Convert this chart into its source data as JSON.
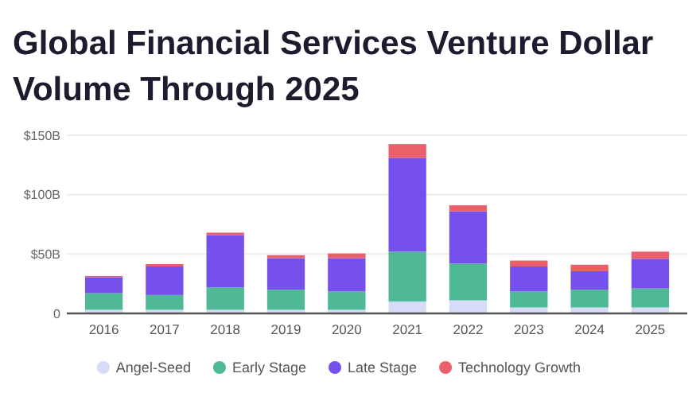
{
  "chart_data": {
    "type": "bar",
    "title": "Global Financial Services Venture Dollar Volume Through 2025",
    "categories": [
      "2016",
      "2017",
      "2018",
      "2019",
      "2020",
      "2021",
      "2022",
      "2023",
      "2024",
      "2025"
    ],
    "stacked": true,
    "series": [
      {
        "name": "Angel-Seed",
        "color": "#d6dcf7",
        "values": [
          3,
          3,
          3,
          3,
          3,
          10,
          11,
          5,
          5,
          5
        ]
      },
      {
        "name": "Early Stage",
        "color": "#4fb896",
        "values": [
          14,
          12.5,
          19,
          17,
          15.5,
          42,
          31,
          13.5,
          15,
          16
        ]
      },
      {
        "name": "Late Stage",
        "color": "#7650ec",
        "values": [
          13.5,
          24,
          44,
          26.5,
          28,
          79,
          44,
          21,
          15.5,
          25
        ]
      },
      {
        "name": "Technology Growth",
        "color": "#e9606a",
        "values": [
          1,
          2,
          2,
          2.5,
          4,
          11.5,
          5,
          5,
          5.5,
          6
        ]
      }
    ],
    "ylim": [
      0,
      150
    ],
    "yticks": [
      {
        "value": 0,
        "label": "0"
      },
      {
        "value": 50,
        "label": "$50B"
      },
      {
        "value": 100,
        "label": "$100B"
      },
      {
        "value": 150,
        "label": "$150B"
      }
    ],
    "grid": "y",
    "legend": "bottom"
  }
}
